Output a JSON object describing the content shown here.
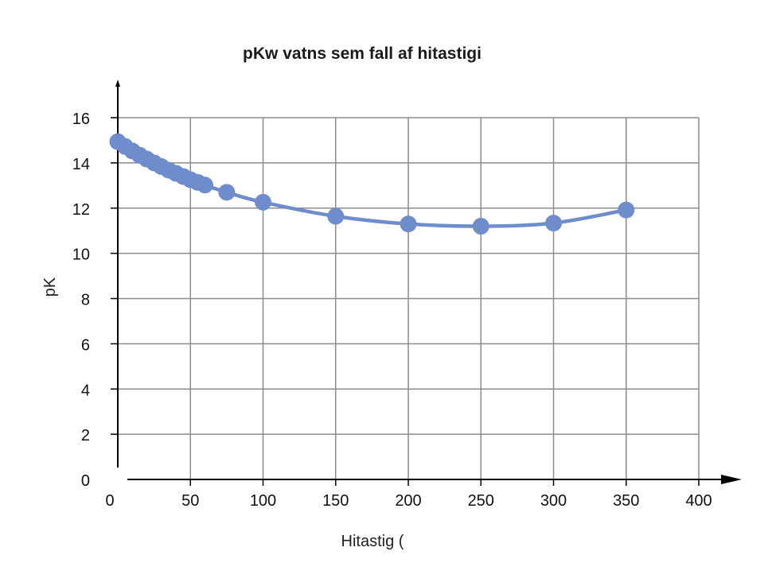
{
  "chart_data": {
    "type": "line",
    "title": "pKw vatns sem fall af hitastigi",
    "xlabel": "Hitastig (",
    "ylabel": "pK",
    "xlim": [
      0,
      400
    ],
    "ylim": [
      0,
      16
    ],
    "xticks": [
      "0",
      "50",
      "100",
      "150",
      "200",
      "250",
      "300",
      "350",
      "400"
    ],
    "yticks": [
      "0",
      "2",
      "4",
      "6",
      "8",
      "10",
      "12",
      "14",
      "16"
    ],
    "grid": true,
    "legend": "none",
    "color": "#6f8ccc",
    "series": [
      {
        "x": [
          0,
          5,
          10,
          15,
          20,
          25,
          30,
          35,
          40,
          45,
          50,
          55,
          60,
          75,
          100,
          150,
          200,
          250,
          300,
          350
        ],
        "y": [
          14.94,
          14.73,
          14.53,
          14.34,
          14.17,
          14.0,
          13.84,
          13.68,
          13.54,
          13.4,
          13.26,
          13.14,
          13.02,
          12.7,
          12.26,
          11.64,
          11.3,
          11.2,
          11.34,
          11.92
        ]
      }
    ]
  }
}
